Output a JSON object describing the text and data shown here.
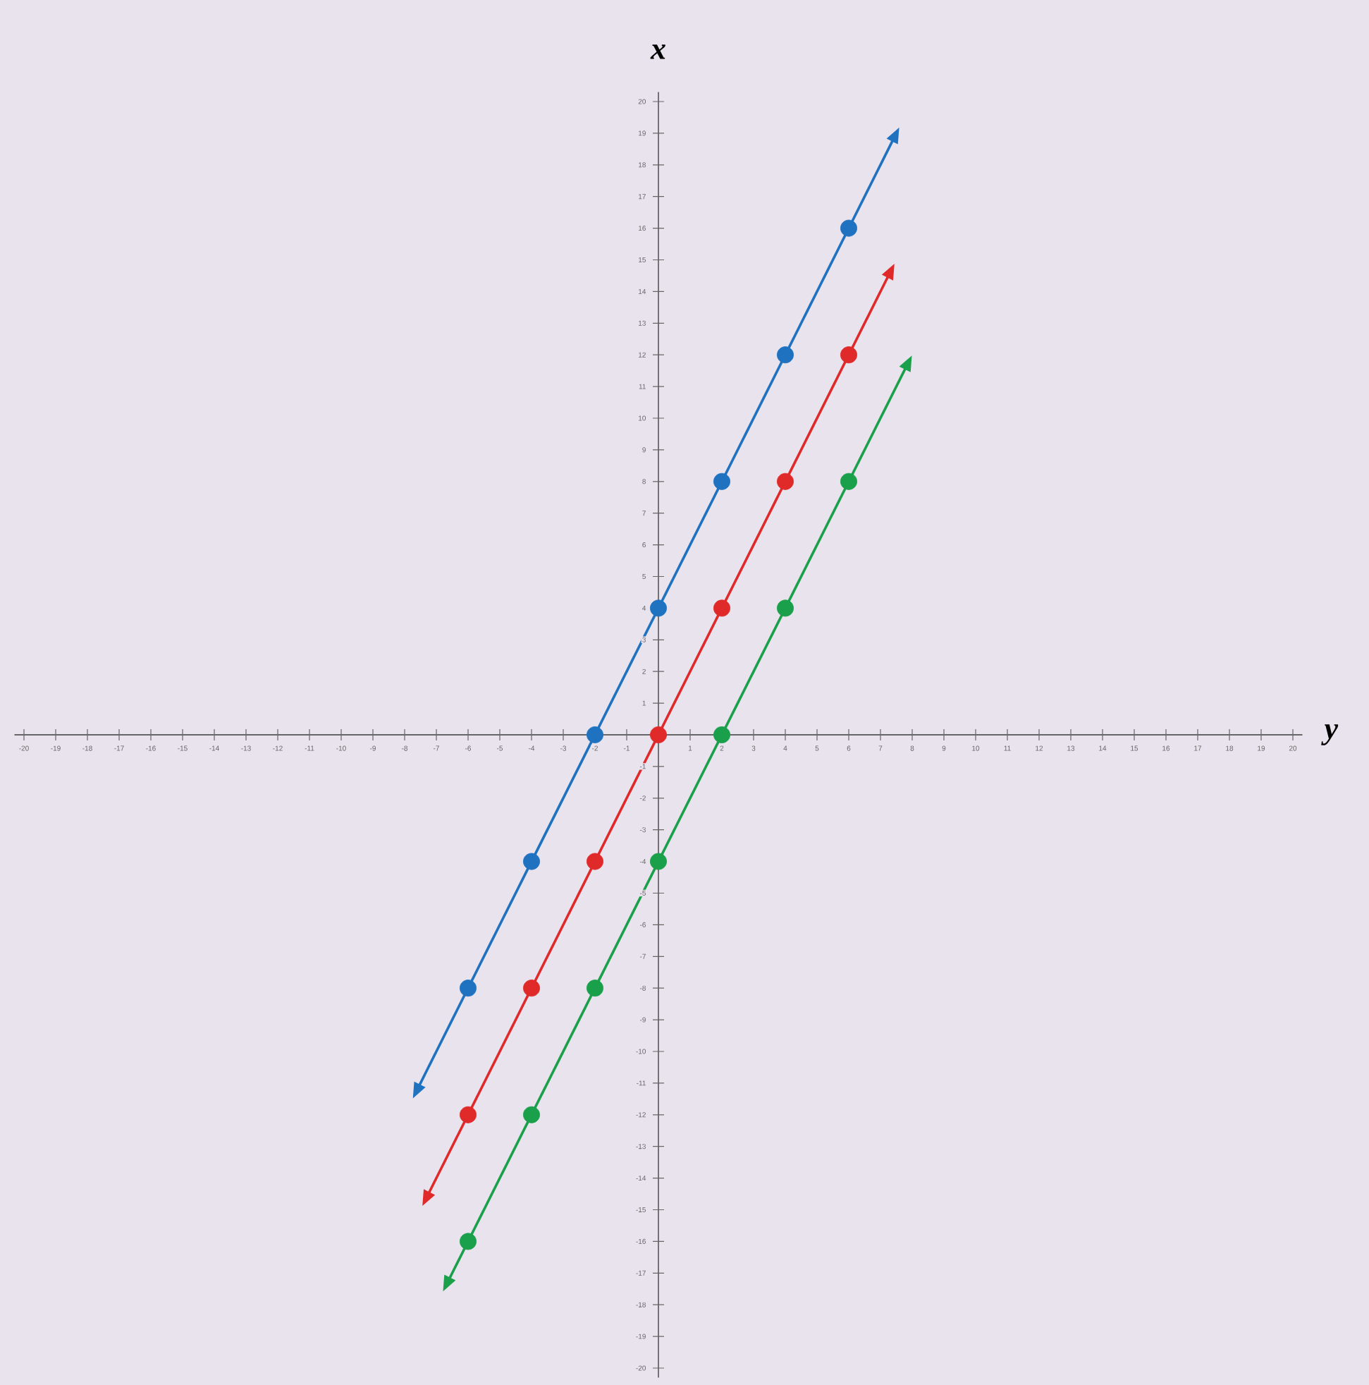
{
  "chart_data": {
    "type": "line",
    "xlabel": "y",
    "ylabel": "x",
    "xlim": [
      -20.3,
      20.3
    ],
    "ylim": [
      -20.3,
      20.3
    ],
    "xticks": [
      -20,
      -19,
      -18,
      -17,
      -16,
      -15,
      -14,
      -13,
      -12,
      -11,
      -10,
      -9,
      -8,
      -7,
      -6,
      -5,
      -4,
      -3,
      -2,
      -1,
      1,
      2,
      3,
      4,
      5,
      6,
      7,
      8,
      9,
      10,
      11,
      12,
      13,
      14,
      15,
      16,
      17,
      18,
      19,
      20
    ],
    "yticks": [
      -20,
      -19,
      -18,
      -17,
      -16,
      -15,
      -14,
      -13,
      -12,
      -11,
      -10,
      -9,
      -8,
      -7,
      -6,
      -5,
      -4,
      -3,
      -2,
      -1,
      1,
      2,
      3,
      4,
      5,
      6,
      7,
      8,
      9,
      10,
      11,
      12,
      13,
      14,
      15,
      16,
      17,
      18,
      19,
      20
    ],
    "line_style": "solid",
    "series": [
      {
        "marker": "triangle",
        "color": "#1f72c0",
        "x": [
          -7.6,
          7.45
        ],
        "values": [
          -11.2,
          18.9
        ]
      },
      {
        "marker": "triangle",
        "color": "#e02a2a",
        "x": [
          -7.3,
          7.3
        ],
        "values": [
          -14.6,
          14.6
        ]
      },
      {
        "marker": "triangle",
        "color": "#1aa04a",
        "x": [
          -6.65,
          7.85
        ],
        "values": [
          -17.3,
          11.7
        ]
      },
      {
        "type": "scatter",
        "marker": "circle",
        "color": "#1f72c0",
        "x": [
          -6,
          -4,
          -2,
          0,
          2,
          4,
          6
        ],
        "values": [
          -8,
          -4,
          0,
          4,
          8,
          12,
          16
        ]
      },
      {
        "type": "scatter",
        "marker": "circle",
        "color": "#e02a2a",
        "x": [
          -6,
          -4,
          -2,
          0,
          2,
          4,
          6
        ],
        "values": [
          -12,
          -8,
          -4,
          0,
          4,
          8,
          12
        ]
      },
      {
        "type": "scatter",
        "marker": "circle",
        "color": "#1aa04a",
        "x": [
          -6,
          -4,
          -2,
          0,
          2,
          4,
          6
        ],
        "values": [
          -16,
          -12,
          -8,
          -4,
          0,
          4,
          8
        ]
      }
    ]
  }
}
